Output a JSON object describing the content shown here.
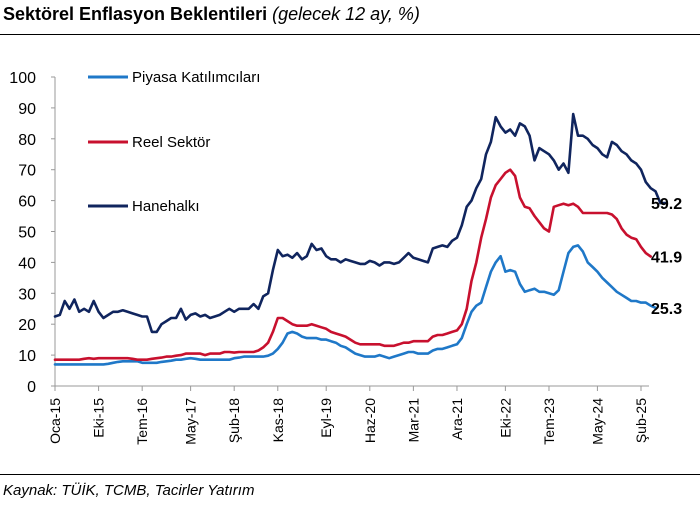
{
  "header": {
    "title_bold": "Sektörel Enflasyon Beklentileri",
    "title_italic": "(gelecek 12 ay, %)"
  },
  "footer": {
    "source": "Kaynak: TÜİK, TCMB, Tacirler Yatırım"
  },
  "chart_data": {
    "type": "line",
    "title": "Sektörel Enflasyon Beklentileri (gelecek 12 ay, %)",
    "xlabel": "",
    "ylabel": "",
    "ylim": [
      0,
      100
    ],
    "yticks": [
      0,
      10,
      20,
      30,
      40,
      50,
      60,
      70,
      80,
      90,
      100
    ],
    "x_start": "2015-01",
    "x_end": "2025-02",
    "x_step": "month",
    "x_tick_labels": [
      "Oca-15",
      "Eki-15",
      "Tem-16",
      "May-17",
      "Şub-18",
      "Kas-18",
      "Eyl-19",
      "Haz-20",
      "Mar-21",
      "Ara-21",
      "Eki-22",
      "Tem-23",
      "May-24",
      "Şub-25"
    ],
    "x_tick_dates": [
      "2015-01",
      "2015-10",
      "2016-07",
      "2017-05",
      "2018-02",
      "2018-11",
      "2019-09",
      "2020-06",
      "2021-03",
      "2021-12",
      "2022-10",
      "2023-07",
      "2024-05",
      "2025-02"
    ],
    "grid": false,
    "legend_position": "top-left",
    "series": [
      {
        "name": "Piyasa Katılımcıları",
        "color": "#1f78c8",
        "end_label": "25.3",
        "values": [
          7.0,
          7.0,
          7.0,
          7.0,
          7.0,
          7.0,
          7.0,
          7.0,
          7.0,
          7.0,
          7.0,
          7.2,
          7.5,
          7.8,
          8.0,
          8.0,
          8.0,
          8.0,
          7.5,
          7.5,
          7.5,
          7.5,
          7.8,
          8.0,
          8.2,
          8.5,
          8.5,
          8.8,
          9.0,
          8.8,
          8.5,
          8.5,
          8.5,
          8.5,
          8.5,
          8.5,
          8.5,
          9.0,
          9.2,
          9.5,
          9.5,
          9.5,
          9.5,
          9.5,
          9.8,
          10.5,
          12.0,
          14.0,
          17.0,
          17.5,
          17.0,
          16.0,
          15.5,
          15.5,
          15.5,
          15.0,
          15.0,
          14.5,
          14.0,
          13.0,
          12.5,
          11.5,
          10.5,
          10.0,
          9.5,
          9.5,
          9.5,
          10.0,
          9.5,
          9.0,
          9.5,
          10.0,
          10.5,
          11.0,
          11.0,
          10.5,
          10.5,
          10.5,
          11.5,
          12.0,
          12.0,
          12.5,
          13.0,
          13.5,
          15.5,
          20.0,
          24.0,
          26.0,
          27.0,
          32.0,
          37.0,
          40.0,
          42.0,
          37.0,
          37.5,
          37.0,
          33.0,
          30.5,
          31.0,
          31.5,
          30.5,
          30.5,
          30.0,
          29.5,
          31.0,
          37.0,
          43.0,
          45.0,
          45.5,
          43.5,
          40.0,
          38.5,
          37.0,
          35.0,
          33.5,
          32.0,
          30.5,
          29.5,
          28.5,
          27.5,
          27.5,
          27.0,
          27.0,
          26.0,
          25.3
        ]
      },
      {
        "name": "Reel Sektör",
        "color": "#c8102e",
        "end_label": "41.9",
        "values": [
          8.5,
          8.5,
          8.5,
          8.5,
          8.5,
          8.5,
          8.8,
          9.0,
          8.8,
          9.0,
          9.0,
          9.0,
          9.0,
          9.0,
          9.0,
          9.0,
          8.8,
          8.5,
          8.5,
          8.5,
          8.8,
          9.0,
          9.2,
          9.5,
          9.5,
          9.8,
          10.0,
          10.5,
          10.5,
          10.5,
          10.5,
          10.0,
          10.5,
          10.5,
          10.5,
          11.0,
          11.0,
          10.8,
          11.0,
          11.0,
          11.0,
          11.0,
          11.5,
          12.5,
          14.0,
          17.5,
          22.0,
          22.0,
          21.0,
          20.0,
          19.5,
          19.5,
          19.5,
          20.0,
          19.5,
          19.0,
          18.5,
          17.5,
          17.0,
          16.5,
          16.0,
          15.0,
          14.0,
          13.5,
          13.5,
          13.5,
          13.5,
          13.5,
          13.0,
          13.0,
          13.0,
          13.5,
          14.0,
          14.0,
          14.5,
          14.5,
          14.5,
          14.5,
          16.0,
          16.5,
          16.5,
          17.0,
          17.5,
          18.0,
          20.0,
          25.0,
          34.0,
          40.0,
          48.0,
          54.0,
          61.0,
          65.0,
          67.0,
          69.0,
          70.0,
          68.0,
          61.0,
          58.0,
          57.5,
          55.0,
          53.0,
          51.0,
          50.0,
          58.0,
          58.5,
          59.0,
          58.5,
          59.0,
          58.0,
          56.0,
          56.0,
          56.0,
          56.0,
          56.0,
          56.0,
          55.5,
          54.0,
          51.0,
          49.0,
          48.0,
          47.5,
          45.0,
          43.0,
          41.9
        ]
      },
      {
        "name": "Hanehalkı",
        "color": "#10255e",
        "end_label": "59.2",
        "values": [
          22.5,
          23.0,
          27.5,
          25.0,
          28.0,
          24.0,
          25.0,
          24.0,
          27.5,
          24.0,
          22.0,
          23.0,
          24.0,
          24.0,
          24.5,
          24.0,
          23.5,
          23.0,
          22.5,
          22.5,
          17.5,
          17.5,
          20.0,
          21.0,
          22.0,
          22.0,
          25.0,
          21.5,
          23.0,
          23.5,
          22.5,
          23.0,
          22.0,
          22.5,
          23.0,
          24.0,
          25.0,
          24.0,
          25.0,
          25.0,
          25.0,
          26.5,
          25.0,
          29.0,
          30.0,
          37.5,
          44.0,
          42.0,
          42.5,
          41.5,
          43.0,
          41.0,
          42.0,
          46.0,
          44.0,
          44.5,
          42.0,
          41.0,
          41.0,
          40.0,
          41.0,
          40.5,
          40.0,
          39.5,
          39.5,
          40.5,
          40.0,
          39.0,
          40.0,
          40.0,
          39.5,
          40.0,
          41.5,
          43.0,
          41.5,
          41.0,
          40.5,
          40.0,
          44.5,
          45.0,
          45.5,
          45.0,
          47.0,
          48.0,
          52.0,
          58.0,
          60.0,
          64.0,
          67.0,
          75.0,
          79.0,
          87.0,
          84.0,
          82.0,
          83.0,
          81.0,
          85.0,
          84.0,
          81.0,
          73.0,
          77.0,
          76.0,
          75.0,
          73.0,
          70.0,
          72.0,
          69.0,
          88.0,
          81.0,
          81.0,
          80.0,
          78.0,
          77.0,
          75.0,
          74.0,
          79.0,
          78.0,
          76.0,
          75.0,
          73.0,
          72.0,
          70.0,
          66.0,
          64.0,
          63.0,
          59.2,
          59.2
        ]
      }
    ]
  }
}
